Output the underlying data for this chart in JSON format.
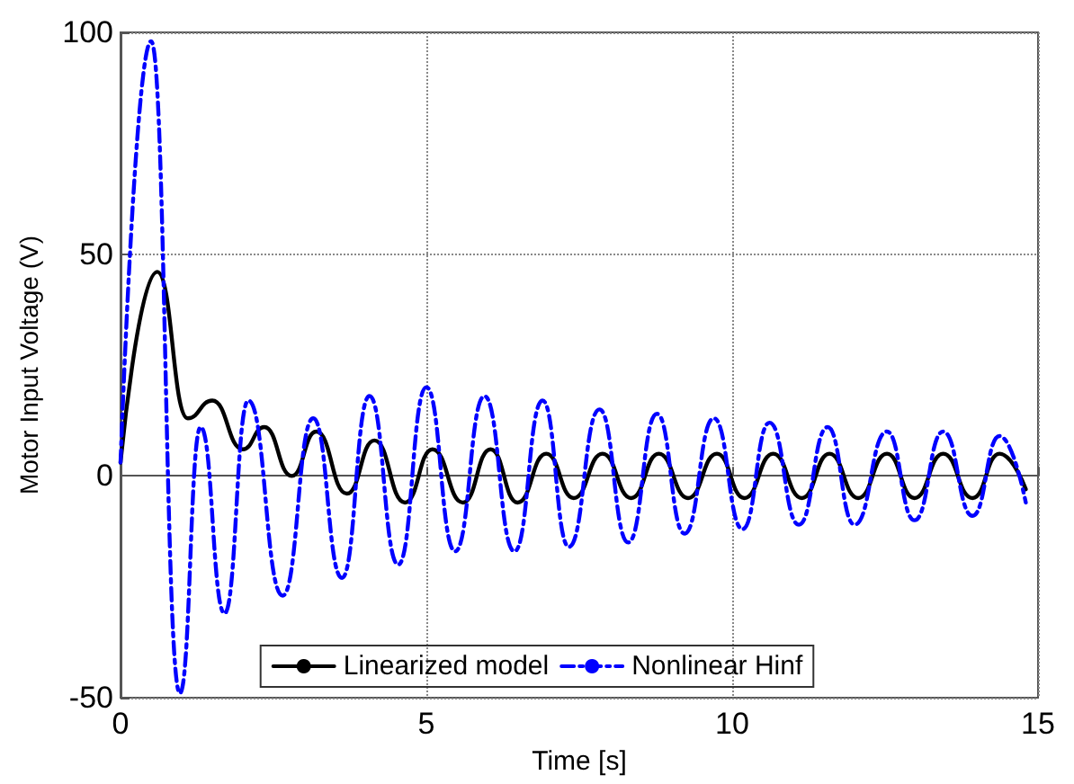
{
  "chart_data": {
    "type": "line",
    "xlabel": "Time [s]",
    "ylabel": "Motor Input Voltage (V)",
    "xlim": [
      0,
      15
    ],
    "xticks": [
      0,
      5,
      10,
      15
    ],
    "ylim": [
      -50,
      100
    ],
    "yticks": [
      -50,
      0,
      50,
      100
    ],
    "grid": true,
    "legend": "bottom",
    "marker": "none",
    "series": [
      {
        "name": "Linearized model",
        "color": "#000000",
        "line_style": "solid",
        "x": [
          0,
          0.6,
          1.1,
          1.5,
          2.0,
          2.35,
          2.8,
          3.2,
          3.7,
          4.15,
          4.65,
          5.1,
          5.6,
          6.05,
          6.49,
          6.96,
          7.41,
          7.88,
          8.35,
          8.8,
          9.28,
          9.75,
          10.2,
          10.67,
          11.14,
          11.59,
          12.06,
          12.53,
          12.98,
          13.45,
          13.93,
          14.37,
          14.8
        ],
        "values": [
          3,
          46,
          13,
          17,
          6,
          11,
          0,
          10,
          -4,
          8,
          -6,
          6,
          -6,
          6,
          -6,
          5,
          -5,
          5,
          -5,
          5,
          -5,
          5,
          -5,
          5,
          -5,
          5,
          -5,
          5,
          -5,
          5,
          -5,
          5,
          -3
        ]
      },
      {
        "name": "Nonlinear Hinf",
        "color": "#0000ff",
        "line_style": "dashed",
        "x": [
          0,
          0.5,
          0.97,
          1.31,
          1.7,
          2.09,
          2.65,
          3.15,
          3.62,
          4.07,
          4.54,
          5.0,
          5.47,
          5.95,
          6.44,
          6.9,
          7.33,
          7.83,
          8.3,
          8.77,
          9.22,
          9.7,
          10.17,
          10.61,
          11.09,
          11.56,
          12.0,
          12.53,
          12.98,
          13.45,
          13.93,
          14.37,
          14.8
        ],
        "values": [
          3,
          98,
          -49,
          11,
          -31,
          17,
          -27,
          13,
          -23,
          18,
          -20,
          20,
          -17,
          18,
          -17,
          17,
          -16,
          15,
          -15,
          14,
          -13,
          13,
          -12,
          12,
          -11,
          11,
          -11,
          10,
          -10,
          10,
          -9,
          9,
          -6
        ]
      }
    ]
  }
}
